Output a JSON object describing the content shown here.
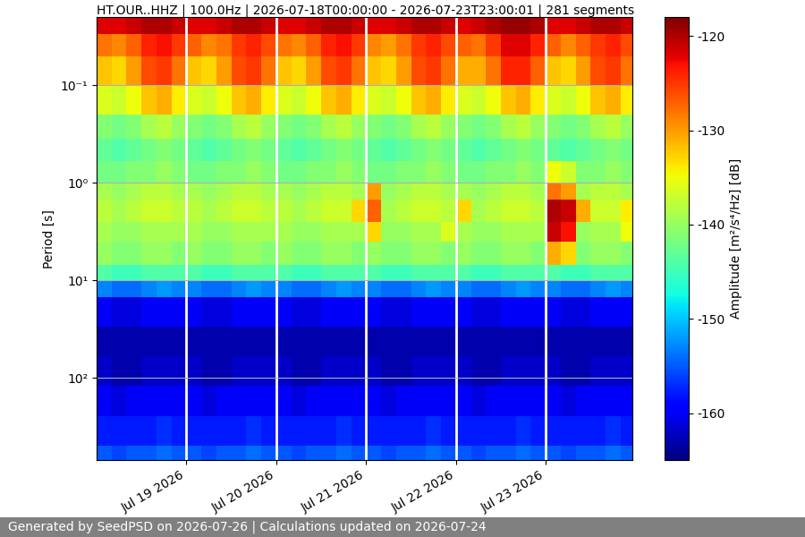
{
  "chart_data": {
    "type": "heatmap",
    "title": "HT.OUR..HHZ | 100.0Hz | 2026-07-18T00:00:00 - 2026-07-23T23:00:01 | 281 segments",
    "y_label": "Period [s]",
    "footer": "Generated by SeedPSD on 2026-07-26 | Calculations updated on 2026-07-24",
    "log": "y",
    "grid": true,
    "color": "jet",
    "xlim": [
      "2026-07-18T00:00:00",
      "2026-07-23T23:00:01"
    ],
    "xticks": [
      {
        "value": "2026-07-19T00:00:00",
        "label": "Jul 19 2026"
      },
      {
        "value": "2026-07-20T00:00:00",
        "label": "Jul 20 2026"
      },
      {
        "value": "2026-07-21T00:00:00",
        "label": "Jul 21 2026"
      },
      {
        "value": "2026-07-22T00:00:00",
        "label": "Jul 22 2026"
      },
      {
        "value": "2026-07-23T00:00:00",
        "label": "Jul 23 2026"
      }
    ],
    "ylim": [
      700,
      0.02
    ],
    "yticks": [
      {
        "value": 0.1,
        "label": "10⁻¹"
      },
      {
        "value": 1,
        "label": "10⁰"
      },
      {
        "value": 10,
        "label": "10¹"
      },
      {
        "value": 100,
        "label": "10²"
      }
    ],
    "x_edges": [
      "2026-07-18T00:00:00",
      "2026-07-18T04:00:00",
      "2026-07-18T08:00:00",
      "2026-07-18T12:00:00",
      "2026-07-18T16:00:00",
      "2026-07-18T20:00:00",
      "2026-07-19T00:00:00",
      "2026-07-19T04:00:00",
      "2026-07-19T08:00:00",
      "2026-07-19T12:00:00",
      "2026-07-19T16:00:00",
      "2026-07-19T20:00:00",
      "2026-07-20T00:00:00",
      "2026-07-20T04:00:00",
      "2026-07-20T08:00:00",
      "2026-07-20T12:00:00",
      "2026-07-20T16:00:00",
      "2026-07-20T20:00:00",
      "2026-07-21T00:00:00",
      "2026-07-21T04:00:00",
      "2026-07-21T08:00:00",
      "2026-07-21T12:00:00",
      "2026-07-21T16:00:00",
      "2026-07-21T20:00:00",
      "2026-07-22T00:00:00",
      "2026-07-22T04:00:00",
      "2026-07-22T08:00:00",
      "2026-07-22T12:00:00",
      "2026-07-22T16:00:00",
      "2026-07-22T20:00:00",
      "2026-07-23T00:00:00",
      "2026-07-23T04:00:00",
      "2026-07-23T08:00:00",
      "2026-07-23T12:00:00",
      "2026-07-23T16:00:00",
      "2026-07-23T20:00:00",
      "2026-07-23T23:00:01"
    ],
    "period_edges": [
      0.02,
      0.03,
      0.05,
      0.1,
      0.2,
      0.35,
      0.6,
      1,
      1.5,
      2.5,
      4,
      7,
      10,
      15,
      30,
      60,
      120,
      250,
      500,
      700
    ],
    "cells": [
      [
        -122,
        -122,
        -121,
        -120,
        -120,
        -121,
        -122,
        -122,
        -121,
        -120,
        -120,
        -121,
        -122,
        -122,
        -121,
        -120,
        -120,
        -121,
        -122,
        -122,
        -121,
        -120,
        -120,
        -121,
        -122,
        -121,
        -120,
        -119,
        -119,
        -120,
        -122,
        -122,
        -121,
        -120,
        -120,
        -121
      ],
      [
        -128,
        -129,
        -127,
        -124,
        -123,
        -125,
        -127,
        -129,
        -128,
        -125,
        -124,
        -126,
        -128,
        -129,
        -127,
        -124,
        -123,
        -125,
        -129,
        -130,
        -128,
        -125,
        -124,
        -126,
        -127,
        -128,
        -125,
        -122,
        -122,
        -124,
        -127,
        -129,
        -127,
        -125,
        -124,
        -126
      ],
      [
        -132,
        -133,
        -130,
        -126,
        -125,
        -128,
        -132,
        -133,
        -130,
        -126,
        -125,
        -128,
        -132,
        -133,
        -130,
        -126,
        -125,
        -128,
        -132,
        -133,
        -130,
        -126,
        -125,
        -128,
        -131,
        -131,
        -128,
        -124,
        -124,
        -127,
        -132,
        -133,
        -130,
        -126,
        -125,
        -128
      ],
      [
        -136,
        -137,
        -135,
        -132,
        -131,
        -134,
        -136,
        -137,
        -135,
        -132,
        -131,
        -134,
        -136,
        -137,
        -135,
        -132,
        -131,
        -134,
        -136,
        -137,
        -135,
        -132,
        -131,
        -134,
        -136,
        -137,
        -135,
        -132,
        -131,
        -134,
        -136,
        -137,
        -135,
        -132,
        -131,
        -134
      ],
      [
        -141,
        -142,
        -141,
        -139,
        -138,
        -140,
        -141,
        -142,
        -141,
        -139,
        -138,
        -140,
        -141,
        -142,
        -141,
        -139,
        -138,
        -140,
        -141,
        -142,
        -141,
        -139,
        -138,
        -140,
        -141,
        -142,
        -141,
        -139,
        -138,
        -140,
        -141,
        -142,
        -141,
        -139,
        -138,
        -140
      ],
      [
        -143,
        -144,
        -143,
        -142,
        -141,
        -142,
        -143,
        -144,
        -143,
        -142,
        -141,
        -142,
        -143,
        -144,
        -143,
        -142,
        -141,
        -142,
        -143,
        -144,
        -143,
        -142,
        -141,
        -142,
        -143,
        -144,
        -143,
        -142,
        -141,
        -142,
        -143,
        -144,
        -143,
        -142,
        -141,
        -142
      ],
      [
        -142,
        -142,
        -141,
        -141,
        -140,
        -141,
        -142,
        -142,
        -141,
        -141,
        -140,
        -141,
        -142,
        -142,
        -141,
        -141,
        -140,
        -141,
        -142,
        -142,
        -141,
        -141,
        -140,
        -141,
        -142,
        -142,
        -141,
        -141,
        -140,
        -141,
        -135,
        -137,
        -141,
        -141,
        -140,
        -141
      ],
      [
        -139,
        -140,
        -139,
        -138,
        -138,
        -139,
        -139,
        -140,
        -139,
        -138,
        -138,
        -139,
        -139,
        -140,
        -139,
        -138,
        -138,
        -139,
        -130,
        -140,
        -139,
        -138,
        -138,
        -139,
        -139,
        -140,
        -139,
        -138,
        -138,
        -139,
        -128,
        -130,
        -139,
        -138,
        -138,
        -139
      ],
      [
        -138,
        -139,
        -138,
        -137,
        -137,
        -138,
        -138,
        -139,
        -138,
        -137,
        -137,
        -138,
        -138,
        -139,
        -138,
        -137,
        -137,
        -133,
        -127,
        -139,
        -138,
        -137,
        -137,
        -138,
        -133,
        -139,
        -138,
        -137,
        -137,
        -138,
        -120,
        -121,
        -131,
        -137,
        -137,
        -134
      ],
      [
        -139,
        -140,
        -140,
        -139,
        -139,
        -139,
        -139,
        -140,
        -140,
        -139,
        -139,
        -139,
        -139,
        -140,
        -140,
        -139,
        -139,
        -139,
        -133,
        -140,
        -140,
        -139,
        -139,
        -136,
        -139,
        -140,
        -140,
        -139,
        -139,
        -139,
        -121,
        -123,
        -140,
        -139,
        -139,
        -135
      ],
      [
        -140,
        -141,
        -141,
        -140,
        -140,
        -141,
        -140,
        -141,
        -141,
        -140,
        -140,
        -141,
        -140,
        -141,
        -141,
        -140,
        -140,
        -141,
        -140,
        -141,
        -141,
        -140,
        -140,
        -141,
        -140,
        -141,
        -141,
        -140,
        -140,
        -141,
        -131,
        -133,
        -141,
        -140,
        -140,
        -141
      ],
      [
        -144,
        -145,
        -145,
        -144,
        -144,
        -144,
        -144,
        -145,
        -145,
        -144,
        -144,
        -144,
        -144,
        -145,
        -145,
        -144,
        -144,
        -144,
        -144,
        -145,
        -145,
        -144,
        -144,
        -144,
        -144,
        -145,
        -145,
        -144,
        -144,
        -144,
        -144,
        -145,
        -145,
        -144,
        -144,
        -144
      ],
      [
        -153,
        -154,
        -154,
        -153,
        -152,
        -153,
        -153,
        -154,
        -154,
        -153,
        -152,
        -153,
        -153,
        -154,
        -154,
        -153,
        -152,
        -153,
        -153,
        -154,
        -154,
        -153,
        -152,
        -153,
        -153,
        -154,
        -154,
        -153,
        -152,
        -153,
        -153,
        -154,
        -154,
        -153,
        -152,
        -153
      ],
      [
        -160,
        -161,
        -161,
        -160,
        -160,
        -160,
        -160,
        -161,
        -161,
        -160,
        -160,
        -160,
        -160,
        -161,
        -161,
        -160,
        -160,
        -160,
        -160,
        -161,
        -161,
        -160,
        -160,
        -160,
        -160,
        -161,
        -161,
        -160,
        -160,
        -160,
        -160,
        -161,
        -161,
        -160,
        -160,
        -160
      ],
      [
        -163,
        -163,
        -163,
        -163,
        -163,
        -163,
        -163,
        -163,
        -163,
        -163,
        -163,
        -163,
        -163,
        -163,
        -163,
        -163,
        -163,
        -163,
        -163,
        -163,
        -163,
        -163,
        -163,
        -163,
        -163,
        -163,
        -163,
        -163,
        -163,
        -163,
        -163,
        -163,
        -163,
        -163,
        -163,
        -163
      ],
      [
        -162,
        -163,
        -163,
        -162,
        -162,
        -162,
        -162,
        -163,
        -163,
        -162,
        -162,
        -162,
        -162,
        -163,
        -163,
        -162,
        -162,
        -162,
        -162,
        -163,
        -163,
        -162,
        -162,
        -162,
        -162,
        -163,
        -163,
        -162,
        -162,
        -162,
        -162,
        -163,
        -163,
        -162,
        -162,
        -162
      ],
      [
        -160,
        -161,
        -160,
        -160,
        -160,
        -160,
        -160,
        -161,
        -160,
        -160,
        -160,
        -160,
        -160,
        -161,
        -160,
        -160,
        -160,
        -160,
        -160,
        -161,
        -160,
        -160,
        -160,
        -160,
        -160,
        -161,
        -160,
        -160,
        -160,
        -160,
        -160,
        -161,
        -160,
        -160,
        -160,
        -160
      ],
      [
        -158,
        -158,
        -158,
        -158,
        -157,
        -158,
        -158,
        -158,
        -158,
        -158,
        -157,
        -158,
        -158,
        -158,
        -158,
        -158,
        -157,
        -158,
        -158,
        -158,
        -158,
        -158,
        -157,
        -158,
        -158,
        -158,
        -158,
        -158,
        -157,
        -158,
        -158,
        -158,
        -158,
        -158,
        -157,
        -158
      ],
      [
        -155,
        -156,
        -155,
        -155,
        -154,
        -155,
        -155,
        -156,
        -155,
        -155,
        -154,
        -155,
        -155,
        -156,
        -155,
        -155,
        -154,
        -155,
        -155,
        -156,
        -155,
        -155,
        -154,
        -155,
        -155,
        -156,
        -155,
        -155,
        -154,
        -155,
        -155,
        -156,
        -155,
        -155,
        -154,
        -155
      ]
    ],
    "colorbar_label": "Amplitude [m²/s⁴/Hz] [dB]",
    "colorbar_lim": [
      -165,
      -118
    ],
    "colorbar_ticks": [
      -120,
      -130,
      -140,
      -150,
      -160
    ]
  }
}
